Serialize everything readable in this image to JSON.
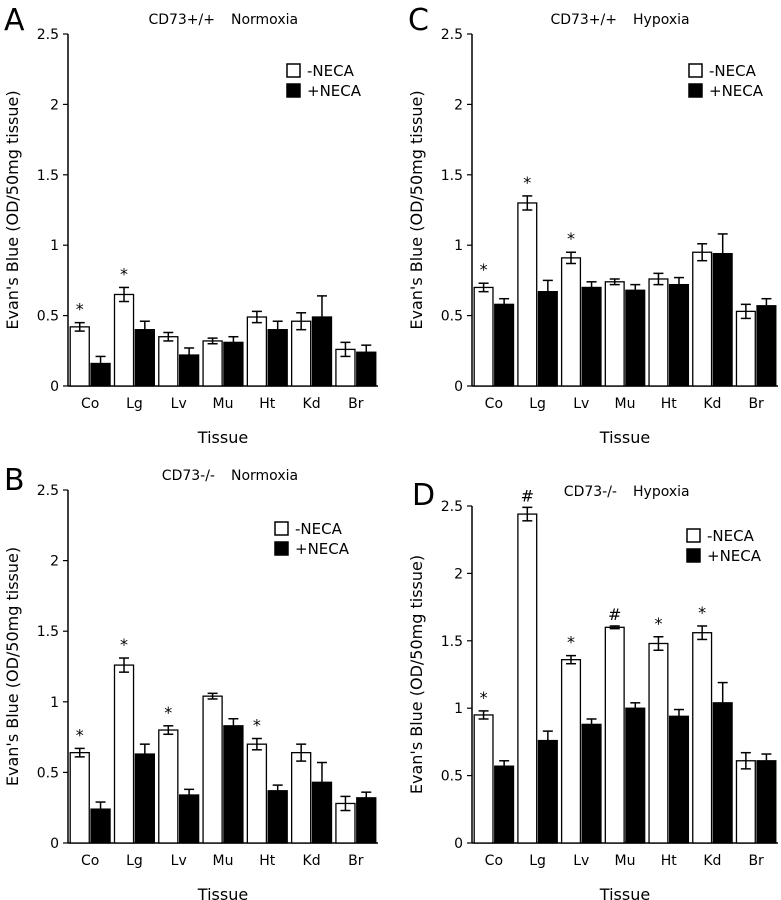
{
  "figure": {
    "series_names": [
      "-NECA",
      "+NECA"
    ],
    "series_colors": [
      "#ffffff",
      "#000000"
    ]
  },
  "chart_data": [
    {
      "panel": "A",
      "type": "bar",
      "title_genotype": "CD73+/+",
      "title_condition": "Normoxia",
      "xlabel": "Tissue",
      "ylabel": "Evan's Blue  (OD/50mg tissue)",
      "ylim": [
        0,
        2.5
      ],
      "yticks": [
        "0",
        "0.5",
        "1",
        "1.5",
        "2",
        "2.5"
      ],
      "categories": [
        "Co",
        "Lg",
        "Lv",
        "Mu",
        "Ht",
        "Kd",
        "Br"
      ],
      "series": [
        {
          "name": "-NECA",
          "values": [
            0.42,
            0.65,
            0.35,
            0.32,
            0.49,
            0.46,
            0.26
          ],
          "errors": [
            0.03,
            0.05,
            0.03,
            0.02,
            0.04,
            0.06,
            0.05
          ]
        },
        {
          "name": "+NECA",
          "values": [
            0.16,
            0.4,
            0.22,
            0.31,
            0.4,
            0.49,
            0.24
          ],
          "errors": [
            0.05,
            0.06,
            0.05,
            0.04,
            0.06,
            0.15,
            0.05
          ]
        }
      ],
      "annotations": [
        "*",
        "*",
        "",
        "",
        "",
        "",
        ""
      ]
    },
    {
      "panel": "B",
      "type": "bar",
      "title_genotype": "CD73-/-",
      "title_condition": "Normoxia",
      "xlabel": "Tissue",
      "ylabel": "Evan's Blue  (OD/50mg tissue)",
      "ylim": [
        0,
        2.5
      ],
      "yticks": [
        "0",
        "0.5",
        "1",
        "1.5",
        "2",
        "2.5"
      ],
      "categories": [
        "Co",
        "Lg",
        "Lv",
        "Mu",
        "Ht",
        "Kd",
        "Br"
      ],
      "series": [
        {
          "name": "-NECA",
          "values": [
            0.64,
            1.26,
            0.8,
            1.04,
            0.7,
            0.64,
            0.28
          ],
          "errors": [
            0.03,
            0.05,
            0.03,
            0.02,
            0.04,
            0.06,
            0.05
          ]
        },
        {
          "name": "+NECA",
          "values": [
            0.24,
            0.63,
            0.34,
            0.83,
            0.37,
            0.43,
            0.32
          ],
          "errors": [
            0.05,
            0.07,
            0.04,
            0.05,
            0.04,
            0.14,
            0.04
          ]
        }
      ],
      "annotations": [
        "*",
        "*",
        "*",
        "",
        "*",
        "",
        ""
      ]
    },
    {
      "panel": "C",
      "type": "bar",
      "title_genotype": "CD73+/+",
      "title_condition": "Hypoxia",
      "xlabel": "Tissue",
      "ylabel": "Evan's Blue  (OD/50mg tissue)",
      "ylim": [
        0,
        2.5
      ],
      "yticks": [
        "0",
        "0.5",
        "1",
        "1.5",
        "2",
        "2.5"
      ],
      "categories": [
        "Co",
        "Lg",
        "Lv",
        "Mu",
        "Ht",
        "Kd",
        "Br"
      ],
      "series": [
        {
          "name": "-NECA",
          "values": [
            0.7,
            1.3,
            0.91,
            0.74,
            0.76,
            0.95,
            0.53
          ],
          "errors": [
            0.03,
            0.05,
            0.04,
            0.02,
            0.04,
            0.06,
            0.05
          ]
        },
        {
          "name": "+NECA",
          "values": [
            0.58,
            0.67,
            0.7,
            0.68,
            0.72,
            0.94,
            0.57
          ],
          "errors": [
            0.04,
            0.08,
            0.04,
            0.04,
            0.05,
            0.14,
            0.05
          ]
        }
      ],
      "annotations": [
        "*",
        "*",
        "*",
        "",
        "",
        "",
        ""
      ]
    },
    {
      "panel": "D",
      "type": "bar",
      "title_genotype": "CD73-/-",
      "title_condition": "Hypoxia",
      "xlabel": "Tissue",
      "ylabel": "Evan's Blue  (OD/50mg tissue)",
      "ylim": [
        0,
        2.5
      ],
      "yticks": [
        "0",
        "0.5",
        "1",
        "1.5",
        "2",
        "2.5"
      ],
      "categories": [
        "Co",
        "Lg",
        "Lv",
        "Mu",
        "Ht",
        "Kd",
        "Br"
      ],
      "series": [
        {
          "name": "-NECA",
          "values": [
            0.95,
            2.44,
            1.36,
            1.6,
            1.48,
            1.56,
            0.61
          ],
          "errors": [
            0.03,
            0.05,
            0.03,
            0.01,
            0.05,
            0.05,
            0.06
          ]
        },
        {
          "name": "+NECA",
          "values": [
            0.57,
            0.76,
            0.88,
            1.0,
            0.94,
            1.04,
            0.61
          ],
          "errors": [
            0.04,
            0.07,
            0.04,
            0.04,
            0.05,
            0.15,
            0.05
          ]
        }
      ],
      "annotations": [
        "*",
        "#",
        "*",
        "#",
        "*",
        "*",
        ""
      ]
    }
  ]
}
